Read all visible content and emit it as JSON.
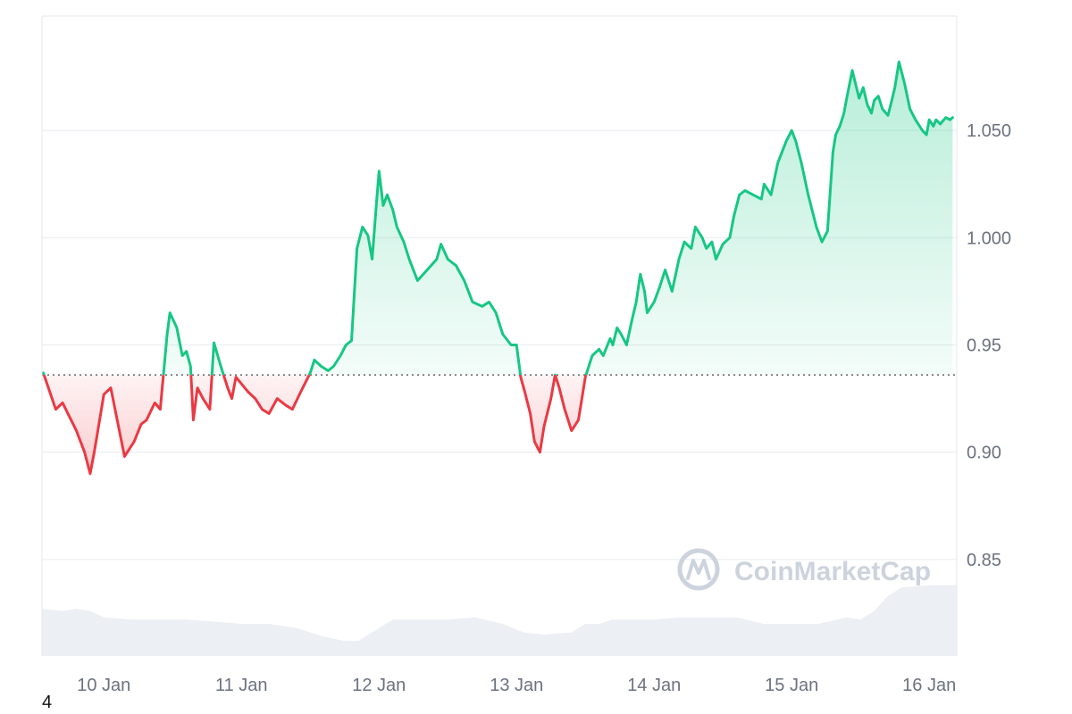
{
  "footnote": "4",
  "watermark": {
    "text": "CoinMarketCap",
    "icon": "coinmarketcap-logo-icon"
  },
  "colors": {
    "up": "#16c784",
    "down": "#ea3943",
    "up_fill": "#16c784",
    "down_fill": "#ea3943",
    "grid": "#e8ebef",
    "volume": "#eceff3",
    "baseline": "#666666"
  },
  "chart_data": {
    "type": "area",
    "title": "",
    "xlabel": "",
    "ylabel": "",
    "x_ticks": [
      "10 Jan",
      "11 Jan",
      "12 Jan",
      "13 Jan",
      "14 Jan",
      "15 Jan",
      "16 Jan"
    ],
    "y_ticks": [
      "1.050",
      "1.000",
      "0.95",
      "0.90",
      "0.85"
    ],
    "y_tick_values": [
      1.05,
      1.0,
      0.95,
      0.9,
      0.85
    ],
    "ylim": [
      0.805,
      1.1
    ],
    "xlim_days": [
      9.55,
      16.2
    ],
    "y_axis_position": "right",
    "grid": true,
    "baseline": 0.936,
    "series": [
      {
        "values_x_day": [
          9.56,
          9.65,
          9.7,
          9.8,
          9.86,
          9.9,
          9.93,
          10.0,
          10.05,
          10.15,
          10.22,
          10.27,
          10.31,
          10.37,
          10.41,
          10.46,
          10.48,
          10.53,
          10.57,
          10.6,
          10.63,
          10.65,
          10.68,
          10.72,
          10.77,
          10.8,
          10.85,
          10.9,
          10.93,
          10.96,
          11.05,
          11.1,
          11.15,
          11.2,
          11.26,
          11.32,
          11.37,
          11.43,
          11.5,
          11.53,
          11.58,
          11.63,
          11.67,
          11.72,
          11.76,
          11.8,
          11.84,
          11.88,
          11.92,
          11.95,
          11.98,
          12.0,
          12.03,
          12.06,
          12.1,
          12.13,
          12.18,
          12.22,
          12.28,
          12.35,
          12.42,
          12.45,
          12.5,
          12.56,
          12.62,
          12.68,
          12.75,
          12.8,
          12.85,
          12.9,
          12.96,
          13.0,
          13.03,
          13.06,
          13.1,
          13.13,
          13.17,
          13.2,
          13.25,
          13.28,
          13.31,
          13.35,
          13.4,
          13.45,
          13.5,
          13.55,
          13.6,
          13.63,
          13.68,
          13.7,
          13.73,
          13.76,
          13.8,
          13.84,
          13.87,
          13.9,
          13.93,
          13.95,
          14.0,
          14.04,
          14.08,
          14.13,
          14.18,
          14.22,
          14.27,
          14.3,
          14.35,
          14.38,
          14.42,
          14.45,
          14.5,
          14.55,
          14.58,
          14.62,
          14.66,
          14.72,
          14.78,
          14.8,
          14.85,
          14.9,
          14.96,
          15.0,
          15.03,
          15.07,
          15.12,
          15.18,
          15.22,
          15.26,
          15.3,
          15.32,
          15.35,
          15.38,
          15.4,
          15.44,
          15.49,
          15.52,
          15.55,
          15.58,
          15.6,
          15.63,
          15.66,
          15.7,
          15.72,
          15.75,
          15.78,
          15.82,
          15.86,
          15.9,
          15.95,
          15.98,
          16.0,
          16.03,
          16.05,
          16.08,
          16.12,
          16.15,
          16.17
        ],
        "values": [
          0.937,
          0.92,
          0.923,
          0.91,
          0.9,
          0.89,
          0.9,
          0.927,
          0.93,
          0.898,
          0.905,
          0.913,
          0.915,
          0.923,
          0.92,
          0.955,
          0.965,
          0.958,
          0.945,
          0.947,
          0.94,
          0.915,
          0.93,
          0.925,
          0.92,
          0.951,
          0.94,
          0.93,
          0.925,
          0.935,
          0.928,
          0.925,
          0.92,
          0.918,
          0.925,
          0.922,
          0.92,
          0.928,
          0.937,
          0.943,
          0.94,
          0.938,
          0.94,
          0.945,
          0.95,
          0.952,
          0.995,
          1.005,
          1.001,
          0.99,
          1.015,
          1.031,
          1.015,
          1.02,
          1.013,
          1.005,
          0.998,
          0.99,
          0.98,
          0.985,
          0.99,
          0.997,
          0.99,
          0.987,
          0.98,
          0.97,
          0.968,
          0.97,
          0.965,
          0.955,
          0.95,
          0.95,
          0.935,
          0.928,
          0.918,
          0.905,
          0.9,
          0.912,
          0.925,
          0.936,
          0.93,
          0.92,
          0.91,
          0.915,
          0.935,
          0.945,
          0.948,
          0.945,
          0.953,
          0.95,
          0.958,
          0.955,
          0.95,
          0.962,
          0.97,
          0.983,
          0.975,
          0.965,
          0.97,
          0.977,
          0.985,
          0.975,
          0.99,
          0.998,
          0.995,
          1.005,
          1.0,
          0.995,
          0.998,
          0.99,
          0.997,
          1.0,
          1.01,
          1.02,
          1.022,
          1.02,
          1.018,
          1.025,
          1.02,
          1.035,
          1.045,
          1.05,
          1.045,
          1.035,
          1.02,
          1.005,
          0.998,
          1.003,
          1.04,
          1.048,
          1.052,
          1.058,
          1.065,
          1.078,
          1.065,
          1.07,
          1.062,
          1.058,
          1.064,
          1.066,
          1.06,
          1.057,
          1.062,
          1.07,
          1.082,
          1.072,
          1.06,
          1.055,
          1.05,
          1.048,
          1.055,
          1.052,
          1.055,
          1.053,
          1.056,
          1.055,
          1.056
        ]
      }
    ],
    "volume": {
      "x_day": [
        9.55,
        9.7,
        9.8,
        9.9,
        10.0,
        10.2,
        10.4,
        10.6,
        10.8,
        11.0,
        11.2,
        11.4,
        11.6,
        11.75,
        11.85,
        12.0,
        12.1,
        12.3,
        12.5,
        12.7,
        12.9,
        13.05,
        13.2,
        13.4,
        13.5,
        13.6,
        13.7,
        13.8,
        14.0,
        14.2,
        14.4,
        14.6,
        14.8,
        14.9,
        15.0,
        15.2,
        15.4,
        15.5,
        15.6,
        15.7,
        15.8,
        16.0,
        16.2
      ],
      "values": [
        0.827,
        0.826,
        0.827,
        0.826,
        0.823,
        0.822,
        0.822,
        0.822,
        0.821,
        0.82,
        0.82,
        0.818,
        0.814,
        0.812,
        0.812,
        0.818,
        0.822,
        0.822,
        0.822,
        0.823,
        0.82,
        0.816,
        0.815,
        0.816,
        0.82,
        0.82,
        0.822,
        0.822,
        0.822,
        0.823,
        0.823,
        0.823,
        0.82,
        0.82,
        0.82,
        0.82,
        0.823,
        0.822,
        0.826,
        0.833,
        0.837,
        0.838,
        0.838
      ]
    }
  }
}
